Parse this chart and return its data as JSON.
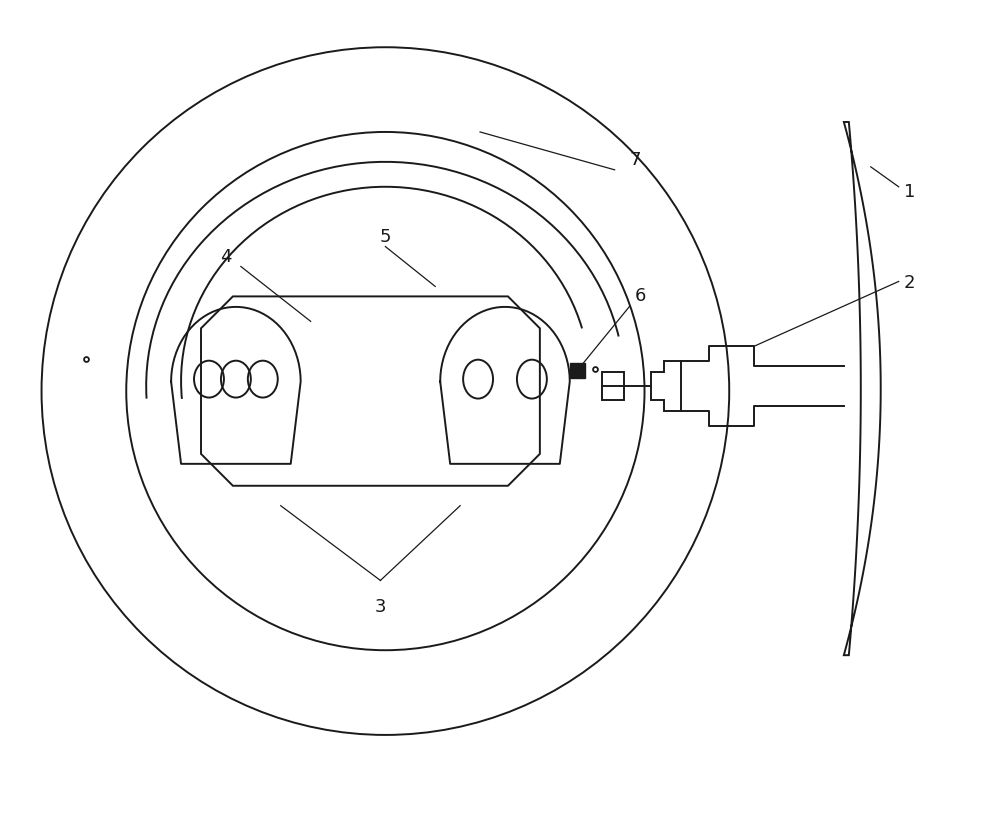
{
  "bg_color": "#ffffff",
  "line_color": "#1a1a1a",
  "lw": 1.4,
  "fig_w": 10.0,
  "fig_h": 8.31
}
